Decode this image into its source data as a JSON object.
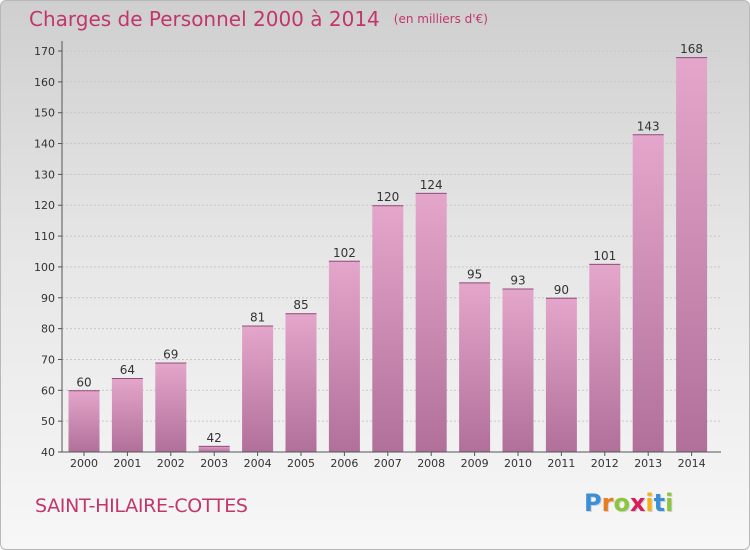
{
  "header": {
    "title": "Charges de Personnel 2000 à 2014",
    "subtitle": "(en milliers d'€)"
  },
  "footer": {
    "commune": "SAINT-HILAIRE-COTTES",
    "logo_letters": [
      "P",
      "r",
      "o",
      "x",
      "i",
      "t",
      "i"
    ],
    "logo_colors": [
      "#3a8fd6",
      "#e97c1d",
      "#8cc63f",
      "#d81e5b",
      "#f2b01e",
      "#3a8fd6",
      "#8cc63f"
    ]
  },
  "chart_data": {
    "type": "bar",
    "categories": [
      "2000",
      "2001",
      "2002",
      "2003",
      "2004",
      "2005",
      "2006",
      "2007",
      "2008",
      "2009",
      "2010",
      "2011",
      "2012",
      "2013",
      "2014"
    ],
    "values": [
      60,
      64,
      69,
      42,
      81,
      85,
      102,
      120,
      124,
      95,
      93,
      90,
      101,
      143,
      168
    ],
    "ylim": [
      40,
      170
    ],
    "yticks": [
      40,
      50,
      60,
      70,
      80,
      90,
      100,
      110,
      120,
      130,
      140,
      150,
      160,
      170
    ],
    "grid": true,
    "bar_color_top": "#e5a6cb",
    "bar_color_bottom": "#b0709a"
  }
}
